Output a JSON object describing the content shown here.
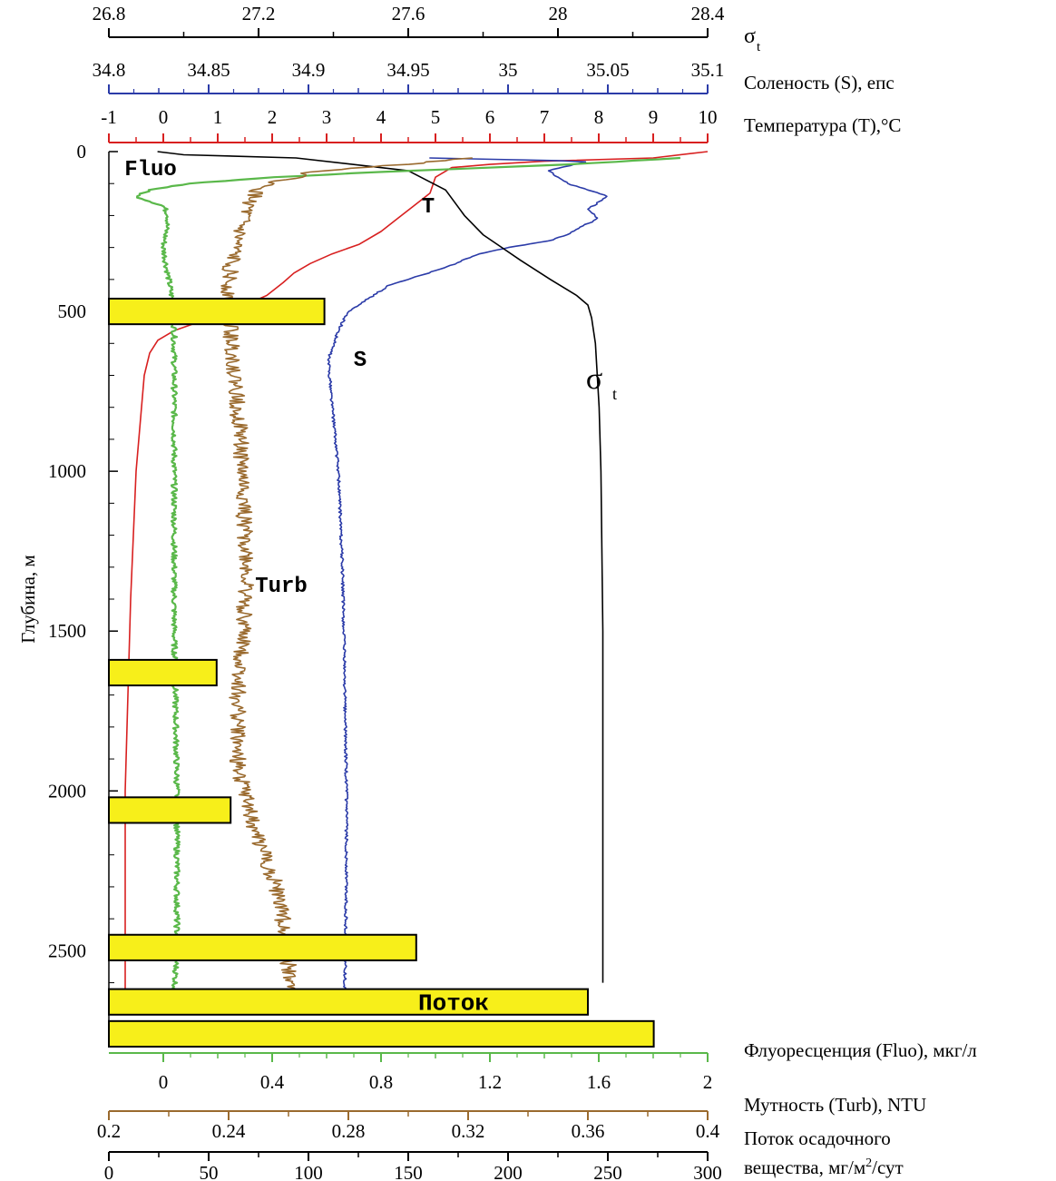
{
  "chart_data": {
    "type": "line",
    "y_axis": {
      "label": "Глубина, м",
      "lim": [
        0,
        2800
      ],
      "ticks": [
        0,
        500,
        1000,
        1500,
        2000,
        2500
      ],
      "inverted": true
    },
    "top_axes": [
      {
        "key": "sigma",
        "label_main": "σ",
        "label_sub": "t",
        "lim": [
          26.8,
          28.4
        ],
        "ticks": [
          "26.8",
          "27.2",
          "27.6",
          "28",
          "28.4"
        ],
        "tick_values": [
          26.8,
          27.2,
          27.6,
          28.0,
          28.4
        ],
        "color": "#000000"
      },
      {
        "key": "salinity",
        "label": "Соленость (S), епс",
        "lim": [
          34.8,
          35.1
        ],
        "ticks": [
          "34.8",
          "34.85",
          "34.9",
          "34.95",
          "35",
          "35.05",
          "35.1"
        ],
        "tick_values": [
          34.8,
          34.85,
          34.9,
          34.95,
          35.0,
          35.05,
          35.1
        ],
        "color": "#2b3ba8"
      },
      {
        "key": "temperature",
        "label": "Температура (T),°C",
        "lim": [
          -1,
          10
        ],
        "ticks": [
          "-1",
          "0",
          "1",
          "2",
          "3",
          "4",
          "5",
          "6",
          "7",
          "8",
          "9",
          "10"
        ],
        "tick_values": [
          -1,
          0,
          1,
          2,
          3,
          4,
          5,
          6,
          7,
          8,
          9,
          10
        ],
        "color": "#d82020"
      }
    ],
    "bottom_axes": [
      {
        "key": "fluo",
        "label": "Флуоресценция (Fluo), мкг/л",
        "lim": [
          -0.2,
          2
        ],
        "ticks": [
          "0",
          "0.4",
          "0.8",
          "1.2",
          "1.6",
          "2"
        ],
        "tick_values": [
          0,
          0.4,
          0.8,
          1.2,
          1.6,
          2.0
        ],
        "color": "#5ab84a"
      },
      {
        "key": "turb",
        "label": "Мутность (Turb), NTU",
        "lim": [
          0.2,
          0.4
        ],
        "ticks": [
          "0.2",
          "0.24",
          "0.28",
          "0.32",
          "0.36",
          "0.4"
        ],
        "tick_values": [
          0.2,
          0.24,
          0.28,
          0.32,
          0.36,
          0.4
        ],
        "color": "#9a6a2e"
      },
      {
        "key": "flux",
        "label_line1": "Поток осадочного",
        "label_line2_pre": "вещества, мг/м",
        "label_line2_sup": "2",
        "label_line2_post": "/сут",
        "lim": [
          0,
          300
        ],
        "ticks": [
          "0",
          "50",
          "100",
          "150",
          "200",
          "250",
          "300"
        ],
        "tick_values": [
          0,
          50,
          100,
          150,
          200,
          250,
          300
        ],
        "color": "#000000"
      }
    ],
    "series": [
      {
        "name": "T",
        "color": "#d82020",
        "axis": "temperature",
        "points": [
          [
            10,
            0
          ],
          [
            9,
            20
          ],
          [
            7,
            30
          ],
          [
            6,
            40
          ],
          [
            5.3,
            50
          ],
          [
            5,
            80
          ],
          [
            4.9,
            130
          ],
          [
            4.6,
            170
          ],
          [
            4.3,
            210
          ],
          [
            4,
            250
          ],
          [
            3.6,
            290
          ],
          [
            3.1,
            320
          ],
          [
            2.7,
            350
          ],
          [
            2.4,
            380
          ],
          [
            2.2,
            410
          ],
          [
            1.9,
            450
          ],
          [
            1.5,
            480
          ],
          [
            1.1,
            500
          ],
          [
            0.7,
            530
          ],
          [
            0.2,
            560
          ],
          [
            -0.1,
            590
          ],
          [
            -0.25,
            630
          ],
          [
            -0.35,
            700
          ],
          [
            -0.4,
            800
          ],
          [
            -0.45,
            900
          ],
          [
            -0.5,
            1000
          ],
          [
            -0.55,
            1200
          ],
          [
            -0.6,
            1400
          ],
          [
            -0.65,
            1700
          ],
          [
            -0.7,
            2000
          ],
          [
            -0.7,
            2300
          ],
          [
            -0.7,
            2500
          ],
          [
            -0.7,
            2700
          ]
        ]
      },
      {
        "name": "S",
        "color": "#2b3ba8",
        "axis": "salinity",
        "points": [
          [
            34.96,
            20
          ],
          [
            35.04,
            30
          ],
          [
            35.02,
            60
          ],
          [
            35.03,
            100
          ],
          [
            35.04,
            120
          ],
          [
            35.05,
            140
          ],
          [
            35.04,
            180
          ],
          [
            35.045,
            210
          ],
          [
            35.035,
            240
          ],
          [
            35.03,
            260
          ],
          [
            35.02,
            280
          ],
          [
            35.0,
            300
          ],
          [
            34.985,
            320
          ],
          [
            34.97,
            360
          ],
          [
            34.94,
            420
          ],
          [
            34.93,
            460
          ],
          [
            34.925,
            480
          ],
          [
            34.92,
            500
          ],
          [
            34.915,
            560
          ],
          [
            34.91,
            650
          ],
          [
            34.912,
            800
          ],
          [
            34.915,
            1000
          ],
          [
            34.917,
            1300
          ],
          [
            34.918,
            1600
          ],
          [
            34.919,
            2000
          ],
          [
            34.919,
            2300
          ],
          [
            34.918,
            2700
          ]
        ]
      },
      {
        "name": "σ",
        "label_sub": "t",
        "color": "#000000",
        "axis": "sigma",
        "points": [
          [
            26.93,
            0
          ],
          [
            27.0,
            10
          ],
          [
            27.3,
            20
          ],
          [
            27.6,
            60
          ],
          [
            27.7,
            120
          ],
          [
            27.75,
            200
          ],
          [
            27.8,
            260
          ],
          [
            27.85,
            300
          ],
          [
            27.9,
            340
          ],
          [
            27.98,
            400
          ],
          [
            28.05,
            450
          ],
          [
            28.08,
            480
          ],
          [
            28.09,
            520
          ],
          [
            28.1,
            600
          ],
          [
            28.11,
            800
          ],
          [
            28.115,
            1000
          ],
          [
            28.12,
            1500
          ],
          [
            28.12,
            2000
          ],
          [
            28.12,
            2500
          ],
          [
            28.12,
            2600
          ]
        ]
      },
      {
        "name": "Fluo",
        "color": "#5ab84a",
        "axis": "fluo",
        "points": [
          [
            1.9,
            20
          ],
          [
            1.5,
            40
          ],
          [
            0.9,
            60
          ],
          [
            0.4,
            80
          ],
          [
            0.1,
            100
          ],
          [
            -0.05,
            120
          ],
          [
            -0.1,
            140
          ],
          [
            0.0,
            170
          ],
          [
            0.02,
            200
          ],
          [
            0.0,
            300
          ],
          [
            0.02,
            400
          ],
          [
            0.04,
            500
          ],
          [
            0.04,
            700
          ],
          [
            0.04,
            1000
          ],
          [
            0.04,
            1500
          ],
          [
            0.05,
            2000
          ],
          [
            0.05,
            2500
          ],
          [
            0.04,
            2650
          ]
        ]
      },
      {
        "name": "Turb",
        "color": "#9a6a2e",
        "axis": "turb",
        "points": [
          [
            0.32,
            20
          ],
          [
            0.3,
            40
          ],
          [
            0.27,
            60
          ],
          [
            0.25,
            110
          ],
          [
            0.245,
            200
          ],
          [
            0.242,
            300
          ],
          [
            0.24,
            400
          ],
          [
            0.24,
            500
          ],
          [
            0.242,
            700
          ],
          [
            0.244,
            900
          ],
          [
            0.245,
            1100
          ],
          [
            0.246,
            1300
          ],
          [
            0.245,
            1500
          ],
          [
            0.243,
            1700
          ],
          [
            0.243,
            1900
          ],
          [
            0.245,
            2000
          ],
          [
            0.248,
            2100
          ],
          [
            0.252,
            2200
          ],
          [
            0.256,
            2300
          ],
          [
            0.258,
            2400
          ],
          [
            0.26,
            2500
          ],
          [
            0.26,
            2650
          ]
        ]
      }
    ],
    "flux_bars": {
      "label": "Поток",
      "items": [
        {
          "top": 460,
          "bottom": 540,
          "value": 108
        },
        {
          "top": 1590,
          "bottom": 1670,
          "value": 54
        },
        {
          "top": 2020,
          "bottom": 2100,
          "value": 61
        },
        {
          "top": 2450,
          "bottom": 2530,
          "value": 154
        },
        {
          "top": 2620,
          "bottom": 2700,
          "value": 240
        },
        {
          "top": 2720,
          "bottom": 2800,
          "value": 273
        }
      ]
    }
  }
}
